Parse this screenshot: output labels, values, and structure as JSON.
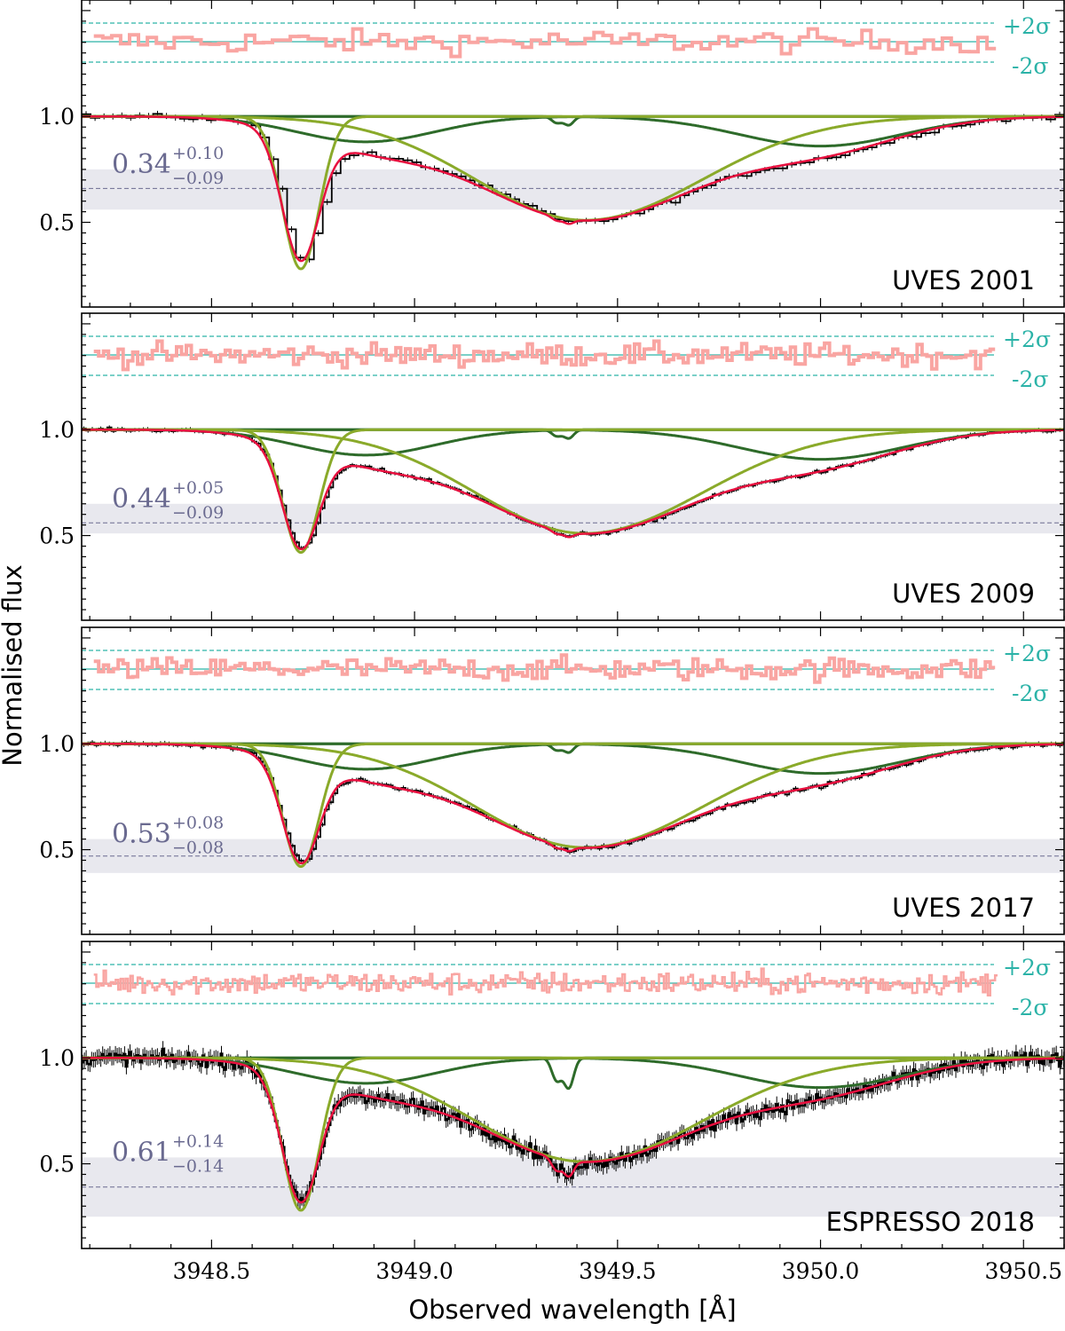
{
  "chart_data": {
    "type": "line",
    "ylabel": "Normalised flux",
    "xlabel": "Observed wavelength [Å]",
    "xlim": [
      3948.18,
      3950.6
    ],
    "xticks": [
      3948.5,
      3949.0,
      3949.5,
      3950.0,
      3950.5
    ],
    "xtick_labels": [
      "3948.5",
      "3949.0",
      "3949.5",
      "3950.0",
      "3950.5"
    ],
    "ylim": [
      0.1,
      1.55
    ],
    "yticks": [
      0.5,
      1.0
    ],
    "ytick_labels": [
      "0.5",
      "1.0"
    ],
    "residual_labels": {
      "upper": "+2σ",
      "lower": "-2σ"
    },
    "colors": {
      "data": "#000000",
      "total_model": "#e8103f",
      "broad_component": "#8aaa2a",
      "narrow_component": "#2e6b2a",
      "residuals": "#f9a5a2",
      "sigma_lines": "#2cb3a8",
      "value_band": "#e8e8ee",
      "value_text": "#6a6a90"
    },
    "component_centres": [
      3948.72,
      3948.88,
      3949.35,
      3949.38,
      3949.41,
      3950.0
    ],
    "panels": [
      {
        "label": "UVES 2001",
        "value": {
          "main": "0.34",
          "plus": "+0.10",
          "minus": "−0.09"
        },
        "band": {
          "center": 0.66,
          "low": 0.56,
          "high": 0.75
        },
        "noise": 0.012,
        "resolution": "low",
        "narrow_depth": 0.38
      },
      {
        "label": "UVES 2009",
        "value": {
          "main": "0.44",
          "plus": "+0.05",
          "minus": "−0.09"
        },
        "band": {
          "center": 0.56,
          "low": 0.51,
          "high": 0.65
        },
        "noise": 0.008,
        "resolution": "high",
        "narrow_depth": 0.42
      },
      {
        "label": "UVES 2017",
        "value": {
          "main": "0.53",
          "plus": "+0.08",
          "minus": "−0.08"
        },
        "band": {
          "center": 0.47,
          "low": 0.39,
          "high": 0.55
        },
        "noise": 0.009,
        "resolution": "high",
        "narrow_depth": 0.44
      },
      {
        "label": "ESPRESSO 2018",
        "value": {
          "main": "0.61",
          "plus": "+0.14",
          "minus": "−0.14"
        },
        "band": {
          "center": 0.39,
          "low": 0.25,
          "high": 0.53
        },
        "noise": 0.03,
        "resolution": "very-high",
        "narrow_depth": 0.27
      }
    ]
  }
}
